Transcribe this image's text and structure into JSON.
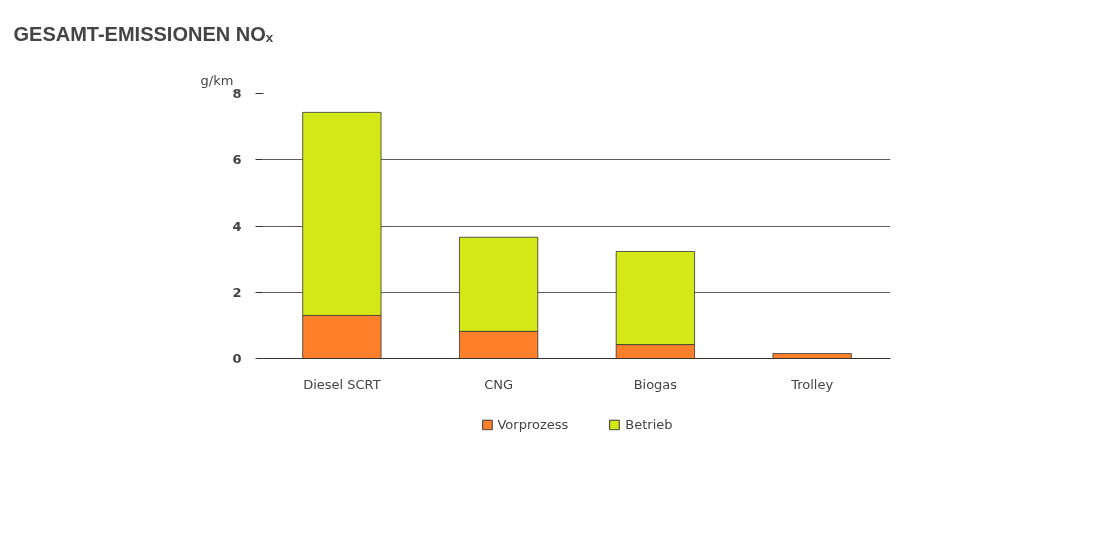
{
  "chart_data": {
    "type": "bar",
    "title": "GESAMT-EMISSIONEN NOₓ",
    "ylabel": "g/km",
    "stacked": true,
    "categories": [
      "Diesel SCRT",
      "CNG",
      "Biogas",
      "Trolley"
    ],
    "series": [
      {
        "name": "Vorprozess",
        "color": "#ff7f2a",
        "values": [
          1.3,
          0.82,
          0.42,
          0.15
        ]
      },
      {
        "name": "Betrieb",
        "color": "#d4e817",
        "values": [
          6.13,
          2.84,
          2.81,
          0
        ]
      }
    ],
    "ylim": [
      0,
      8
    ],
    "yticks": [
      0,
      2,
      4,
      6,
      8
    ],
    "grid": "y",
    "legend": "bottom"
  }
}
